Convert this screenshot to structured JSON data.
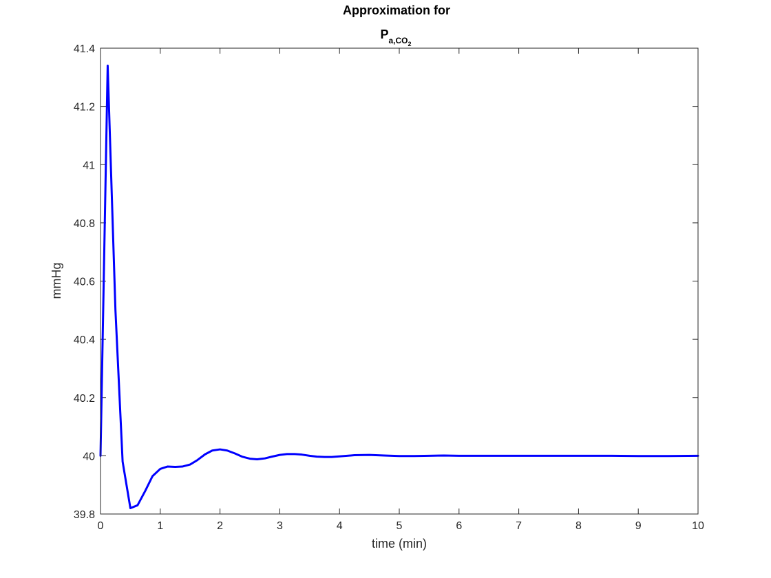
{
  "chart_data": {
    "type": "line",
    "title": "Approximation for",
    "title_line2": {
      "base": "P",
      "subscript": "a,CO",
      "sub_subscript": "2"
    },
    "xlabel": "time (min)",
    "ylabel": "mmHg",
    "xlim": [
      0,
      10
    ],
    "ylim": [
      39.8,
      41.4
    ],
    "xticks": [
      0,
      1,
      2,
      3,
      4,
      5,
      6,
      7,
      8,
      9,
      10
    ],
    "yticks": [
      39.8,
      40,
      40.2,
      40.4,
      40.6,
      40.8,
      41,
      41.2,
      41.4
    ],
    "ytick_labels": [
      "39.8",
      "40",
      "40.2",
      "40.4",
      "40.6",
      "40.8",
      "41",
      "41.2",
      "41.4"
    ],
    "grid": false,
    "box": true,
    "series": [
      {
        "color": "#0000ff",
        "x": [
          0,
          0.12,
          0.25,
          0.37,
          0.5,
          0.62,
          0.75,
          0.87,
          1.0,
          1.12,
          1.25,
          1.37,
          1.5,
          1.62,
          1.75,
          1.87,
          2.0,
          2.12,
          2.25,
          2.37,
          2.5,
          2.62,
          2.75,
          2.87,
          3.0,
          3.12,
          3.25,
          3.37,
          3.5,
          3.62,
          3.75,
          3.87,
          4.0,
          4.25,
          4.5,
          4.75,
          5.0,
          5.25,
          5.5,
          5.75,
          6.0,
          6.5,
          7.0,
          7.5,
          8.0,
          8.5,
          9.0,
          9.5,
          10.0
        ],
        "y": [
          40.0,
          41.34,
          40.5,
          39.98,
          39.82,
          39.83,
          39.88,
          39.93,
          39.955,
          39.963,
          39.962,
          39.963,
          39.97,
          39.985,
          40.005,
          40.018,
          40.022,
          40.018,
          40.008,
          39.997,
          39.99,
          39.988,
          39.991,
          39.997,
          40.003,
          40.006,
          40.006,
          40.004,
          40.0,
          39.997,
          39.996,
          39.996,
          39.998,
          40.002,
          40.003,
          40.001,
          39.999,
          39.999,
          40.0,
          40.001,
          40.0,
          40.0,
          40.0,
          40.0,
          40.0,
          40.0,
          39.999,
          39.999,
          40.0
        ]
      }
    ]
  }
}
